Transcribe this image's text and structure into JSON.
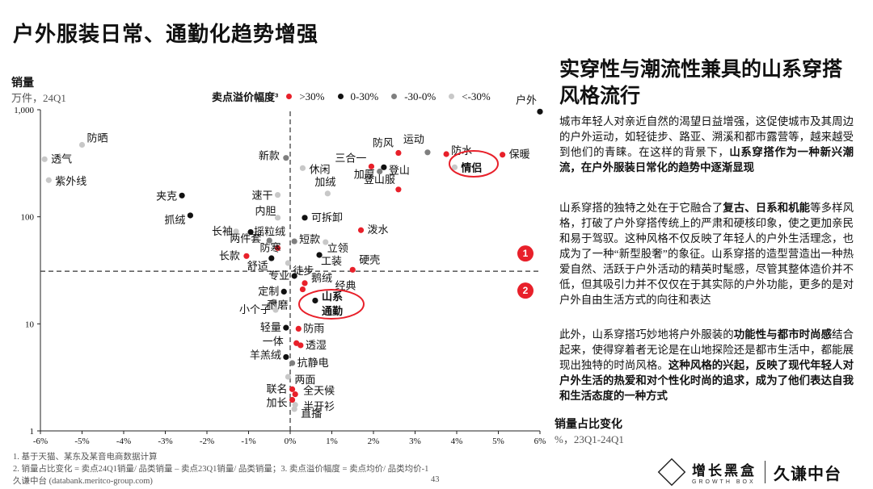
{
  "page_title": "户外服装日常、通勤化趋势增强",
  "right_title": "实穿性与潮流性兼具的山系穿搭风格流行",
  "paragraphs": [
    [
      {
        "t": "城市年轻人对亲近自然的渴望日益增强，这促使城市及其周边的户外运动，如轻徒步、路亚、溯溪和都市露营等，越来越受到他们的青睐。在这样的背景下，",
        "b": false
      },
      {
        "t": "山系穿搭作为一种新兴潮流，在户外服装日常化的趋势中逐渐显现",
        "b": true
      }
    ],
    [
      {
        "t": "山系穿搭的独特之处在于它融合了",
        "b": false
      },
      {
        "t": "复古、日系和机能",
        "b": true
      },
      {
        "t": "等多样风格，打破了户外穿搭传统上的严肃和硬核印象，使之更加亲民和易于驾驭。这种风格不仅反映了年轻人的户外生活理念，也成为了一种“新型股奢”的象征。山系穿搭的造型营造出一种热爱自然、活跃于户外活动的精英时髦感，尽管其整体造价并不低，但其吸引力并不仅仅在于其实际的户外功能，更多的是对户外自由生活方式的向往和表达",
        "b": false
      }
    ],
    [
      {
        "t": "此外，山系穿搭巧妙地将户外服装的",
        "b": false
      },
      {
        "t": "功能性与都市时尚感",
        "b": true
      },
      {
        "t": "结合起来，使得穿着者无论是在山地探险还是都市生活中，都能展现出独特的时尚风格。",
        "b": false
      },
      {
        "t": "这种风格的兴起，反映了现代年轻人对户外生活的热爱和对个性化时尚的追求，成为了他们表达自我和生活态度的一种方式",
        "b": true
      }
    ]
  ],
  "footnotes": [
    "1. 基于天猫、某东及某音电商数据计算",
    "2. 销量占比变化 = 卖点24Q1销量/ 品类销量 – 卖点23Q1销量/ 品类销量；3. 卖点溢价幅度 = 卖点均价/ 品类均价-1",
    "久谦中台 (databank.meritco-group.com)"
  ],
  "page_number": "43",
  "logo": {
    "cn": "增长黑盒",
    "en": "GROWTH BOX",
    "brand": "久谦中台"
  },
  "chart_data": {
    "type": "scatter",
    "ylabel": "销量",
    "yunit": "万件，24Q1",
    "xlabel": "销量占比变化",
    "xunit": "%，23Q1-24Q1",
    "y_scale": "log",
    "ylim": [
      1,
      1000
    ],
    "xlim": [
      -6,
      6
    ],
    "y_ticks": [
      "1",
      "10",
      "100",
      "1,000"
    ],
    "x_ticks": [
      "-6%",
      "-5%",
      "-4%",
      "-3%",
      "-2%",
      "-1%",
      "0%",
      "1%",
      "2%",
      "3%",
      "4%",
      "5%",
      "6%"
    ],
    "legend": {
      "title": "卖点溢价幅度³",
      "items": [
        {
          "label": ">30%",
          "color": "#e8202a"
        },
        {
          "label": "0-30%",
          "color": "#111111"
        },
        {
          "label": "-30-0%",
          "color": "#7f7f7f"
        },
        {
          "label": "<-30%",
          "color": "#c8c8c8"
        }
      ]
    },
    "ref_x": 0,
    "ref_y": 31,
    "quadrant_labels": [
      "1",
      "2"
    ],
    "points": [
      {
        "label": "户外",
        "x": 6.0,
        "y": 960,
        "g": 1
      },
      {
        "label": "防晒",
        "x": -5.0,
        "y": 470,
        "g": 3
      },
      {
        "label": "透气",
        "x": -5.9,
        "y": 345,
        "g": 3
      },
      {
        "label": "紫外线",
        "x": -5.8,
        "y": 220,
        "g": 3
      },
      {
        "label": "运动",
        "x": 3.3,
        "y": 400,
        "g": 2
      },
      {
        "label": "防风",
        "x": 2.6,
        "y": 395,
        "g": 0
      },
      {
        "label": "防水",
        "x": 3.75,
        "y": 385,
        "g": 0
      },
      {
        "label": "保暖",
        "x": 5.1,
        "y": 380,
        "g": 0
      },
      {
        "label": "新款",
        "x": -0.1,
        "y": 355,
        "g": 2
      },
      {
        "label": "三合一",
        "x": 1.95,
        "y": 295,
        "g": 0
      },
      {
        "label": "登山",
        "x": 2.25,
        "y": 290,
        "g": 1
      },
      {
        "label": "加厚",
        "x": 2.15,
        "y": 265,
        "g": 2
      },
      {
        "label": "情侣",
        "x": 3.95,
        "y": 290,
        "g": 3
      },
      {
        "label": "休闲",
        "x": 0.3,
        "y": 285,
        "g": 3
      },
      {
        "label": "登山服",
        "x": 2.6,
        "y": 180,
        "g": 0
      },
      {
        "label": "加绒",
        "x": 0.9,
        "y": 165,
        "g": 3
      },
      {
        "label": "速干",
        "x": -0.3,
        "y": 160,
        "g": 3
      },
      {
        "label": "夹克",
        "x": -2.6,
        "y": 158,
        "g": 1
      },
      {
        "label": "抓绒",
        "x": -2.4,
        "y": 103,
        "g": 1
      },
      {
        "label": "内胆",
        "x": -0.3,
        "y": 98,
        "g": 3
      },
      {
        "label": "可拆卸",
        "x": 0.35,
        "y": 98,
        "g": 1
      },
      {
        "label": "泼水",
        "x": 1.7,
        "y": 75,
        "g": 0
      },
      {
        "label": "长袖",
        "x": -1.3,
        "y": 73,
        "g": 3
      },
      {
        "label": "摇粒绒",
        "x": -0.95,
        "y": 72,
        "g": 1
      },
      {
        "label": "两件套",
        "x": -0.5,
        "y": 60,
        "g": 2
      },
      {
        "label": "短款",
        "x": 0.1,
        "y": 59,
        "g": 2
      },
      {
        "label": "防寒",
        "x": -0.3,
        "y": 51,
        "g": 0
      },
      {
        "label": "立领",
        "x": 0.85,
        "y": 58,
        "g": 3
      },
      {
        "label": "长款",
        "x": -1.05,
        "y": 43,
        "g": 0
      },
      {
        "label": "舒适",
        "x": -0.45,
        "y": 41,
        "g": 1
      },
      {
        "label": "徒步",
        "x": -0.05,
        "y": 37,
        "g": 3
      },
      {
        "label": "工装",
        "x": 0.7,
        "y": 44,
        "g": 1
      },
      {
        "label": "硬壳",
        "x": 1.5,
        "y": 32,
        "g": 0
      },
      {
        "label": "专业",
        "x": 0.1,
        "y": 28,
        "g": 1
      },
      {
        "label": "鹅绒",
        "x": 0.35,
        "y": 24,
        "g": 0
      },
      {
        "label": "经典",
        "x": 0.3,
        "y": 21,
        "g": 0
      },
      {
        "label": "定制",
        "x": -0.15,
        "y": 20,
        "g": 1
      },
      {
        "label": "耐磨",
        "x": -0.4,
        "y": 16,
        "g": 2
      },
      {
        "label": "山系通勤",
        "x": 0.6,
        "y": 16.5,
        "g": 1
      },
      {
        "label": "小个子",
        "x": -0.35,
        "y": 13.5,
        "g": 3
      },
      {
        "label": "轻量",
        "x": -0.1,
        "y": 9.2,
        "g": 1
      },
      {
        "label": "防雨",
        "x": 0.2,
        "y": 9.0,
        "g": 0
      },
      {
        "label": "一体",
        "x": 0.15,
        "y": 6.6,
        "g": 0
      },
      {
        "label": "透湿",
        "x": 0.25,
        "y": 6.3,
        "g": 0
      },
      {
        "label": "羊羔绒",
        "x": -0.1,
        "y": 4.9,
        "g": 1
      },
      {
        "label": "抗静电",
        "x": 0.05,
        "y": 4.3,
        "g": 2
      },
      {
        "label": "两面",
        "x": -0.05,
        "y": 3.2,
        "g": 3
      },
      {
        "label": "联名",
        "x": 0.05,
        "y": 2.45,
        "g": 0
      },
      {
        "label": "全天候",
        "x": 0.12,
        "y": 2.2,
        "g": 0
      },
      {
        "label": "加长",
        "x": 0.05,
        "y": 1.95,
        "g": 0
      },
      {
        "label": "半开衫",
        "x": 0.12,
        "y": 1.75,
        "g": 3
      },
      {
        "label": "直播",
        "x": 0.1,
        "y": 1.6,
        "g": 3
      }
    ]
  }
}
